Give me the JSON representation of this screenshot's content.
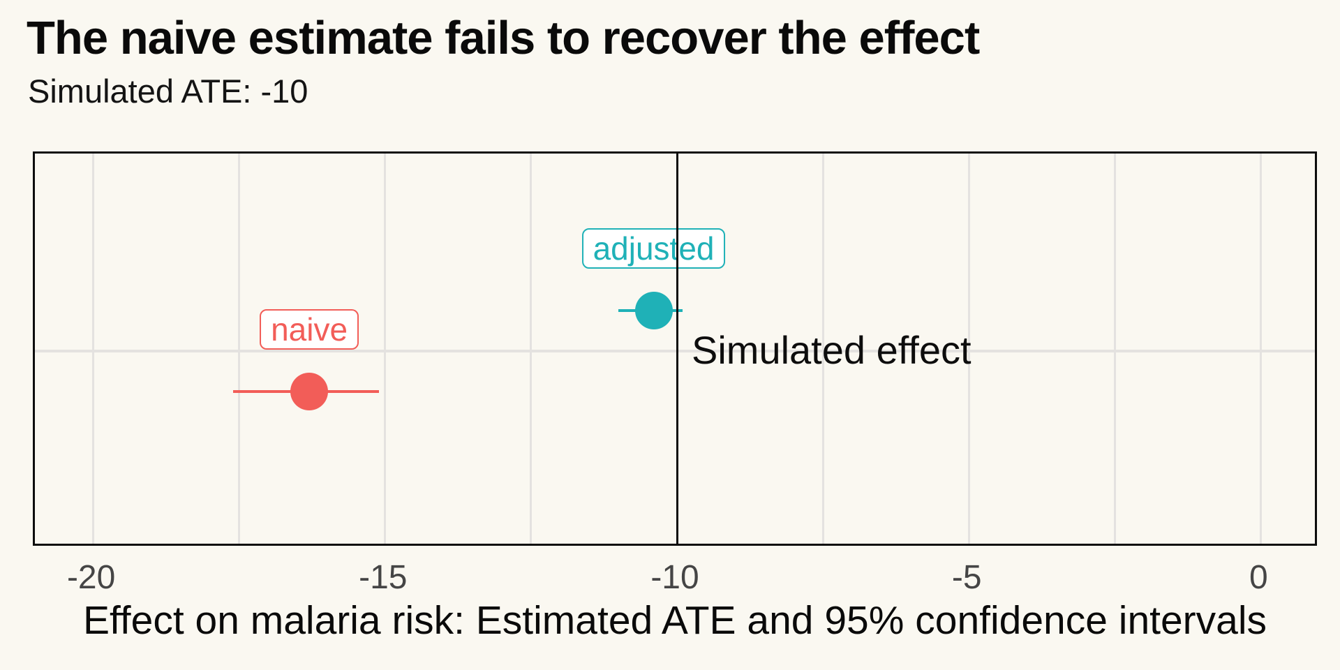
{
  "title": "The naive estimate fails to recover the effect",
  "subtitle": "Simulated ATE: -10",
  "colors": {
    "background": "#FAF8F1",
    "grid": "#E4E2E0",
    "axis_text": "#454545",
    "text": "#0D0D0D",
    "naive": "#F25D58",
    "adjusted": "#1FB1B7"
  },
  "chart_data": {
    "type": "scatter",
    "title": "The naive estimate fails to recover the effect",
    "subtitle": "Simulated ATE: -10",
    "xlabel": "Effect on malaria risk: Estimated ATE and 95% confidence intervals",
    "ylabel": "",
    "x_ticks": [
      -20,
      -15,
      -10,
      -5,
      0
    ],
    "x_minor_interval": 2.5,
    "xlim": [
      -21,
      1
    ],
    "grid": "vertical gridlines every 2.5 units plus one horizontal midline, light gray, black panel border",
    "legend": "none (direct labels in boxes above points)",
    "reference_line": {
      "x": -10,
      "label": "Simulated effect"
    },
    "series": [
      {
        "name": "naive",
        "estimate": -16.3,
        "ci_low": -17.6,
        "ci_high": -15.1,
        "color": "#F25D58"
      },
      {
        "name": "adjusted",
        "estimate": -10.4,
        "ci_low": -11.0,
        "ci_high": -9.9,
        "color": "#1FB1B7"
      }
    ]
  }
}
